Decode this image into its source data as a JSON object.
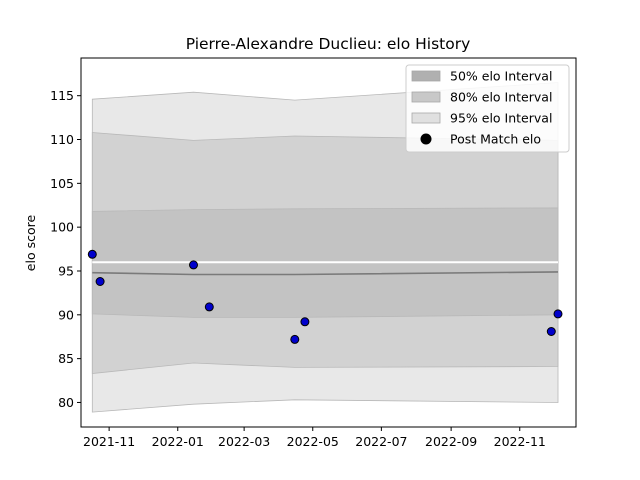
{
  "chart_data": {
    "type": "line",
    "title": "Pierre-Alexandre Duclieu: elo History",
    "xlabel": "",
    "ylabel": "elo score",
    "x_ticks": [
      "2021-11",
      "2022-01",
      "2022-03",
      "2022-05",
      "2022-07",
      "2022-09",
      "2022-11"
    ],
    "y_ticks": [
      80,
      85,
      90,
      95,
      100,
      105,
      110,
      115
    ],
    "ylim": [
      77.2,
      119.3
    ],
    "xlim": [
      "2021-10-07",
      "2022-12-21"
    ],
    "grid": false,
    "legend_position": "top-right",
    "legend": [
      {
        "label": "50% elo Interval",
        "color": "#b0b0b0"
      },
      {
        "label": "80% elo Interval",
        "color": "#c8c8c8"
      },
      {
        "label": "95% elo Interval",
        "color": "#e0e0e0"
      },
      {
        "label": "Post Match elo",
        "color": "#000000"
      }
    ],
    "mean_line": {
      "x": [
        "2021-10-17",
        "2022-01-15",
        "2022-04-15",
        "2022-12-05"
      ],
      "y": [
        94.8,
        94.6,
        94.6,
        94.9
      ]
    },
    "bands": [
      {
        "name": "95% elo Interval",
        "color": "#e0e0e0",
        "x": [
          "2021-10-17",
          "2022-01-15",
          "2022-04-15",
          "2022-12-05"
        ],
        "lower": [
          78.9,
          79.8,
          80.3,
          80.0
        ],
        "upper": [
          114.6,
          115.4,
          114.5,
          116.5
        ]
      },
      {
        "name": "80% elo Interval",
        "color": "#cbcbcb",
        "x": [
          "2021-10-17",
          "2022-01-15",
          "2022-04-15",
          "2022-12-05"
        ],
        "lower": [
          83.3,
          84.5,
          84.0,
          84.1
        ],
        "upper": [
          110.8,
          109.9,
          110.4,
          109.9
        ]
      },
      {
        "name": "50% elo Interval",
        "color": "#bdbdbd",
        "x": [
          "2021-10-17",
          "2022-01-15",
          "2022-04-15",
          "2022-12-05"
        ],
        "lower": [
          90.1,
          89.7,
          89.7,
          90.0
        ],
        "upper": [
          101.8,
          102.0,
          102.1,
          102.2
        ]
      }
    ],
    "white_line_y": 96.0,
    "points": {
      "name": "Post Match elo",
      "color": "#0000cc",
      "x": [
        "2021-10-17",
        "2021-10-24",
        "2022-01-15",
        "2022-01-29",
        "2022-04-15",
        "2022-04-24",
        "2022-11-29",
        "2022-12-05"
      ],
      "y": [
        96.9,
        93.8,
        95.7,
        90.9,
        87.2,
        89.2,
        88.1,
        90.1
      ]
    }
  }
}
